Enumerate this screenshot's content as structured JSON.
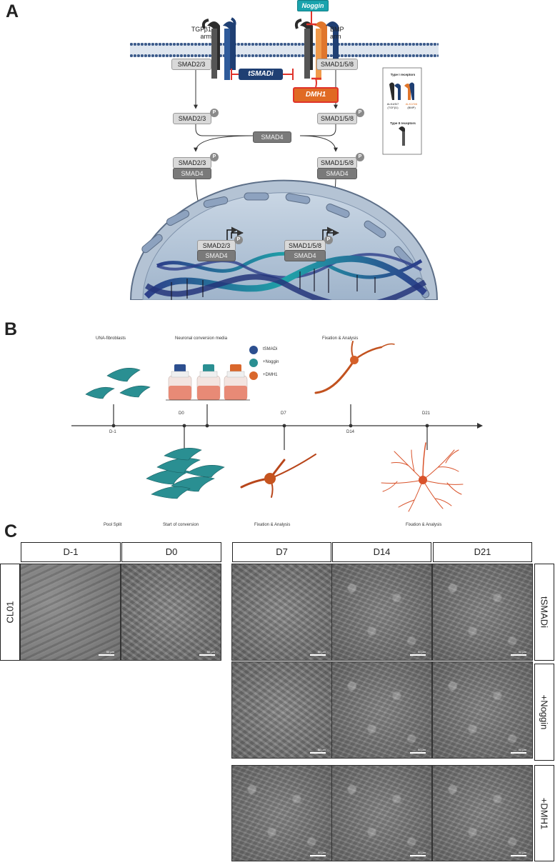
{
  "panels": {
    "a": "A",
    "b": "B",
    "c": "C"
  },
  "panel_a": {
    "noggin": "Noggin",
    "tgfb1_arm": [
      "TGFβ1",
      "arm"
    ],
    "bmp_arm": [
      "BMP",
      "arm"
    ],
    "smad23": "SMAD2/3",
    "smad158": "SMAD1/5/8",
    "smad4": "SMAD4",
    "p": "P",
    "tsmadi": "tSMADi",
    "dmh1": "DMH1",
    "legend": {
      "type1": "Type I receptors",
      "alk_left": [
        "ALK4/5/7",
        "(TGFβ1)"
      ],
      "alk_right": [
        "ALK2/3/6",
        "(BMP)"
      ],
      "type2": "Type II receptors"
    },
    "colors": {
      "noggin": "#1aa3ad",
      "tsmadi": "#1f3f73",
      "dmh1": "#e06a24",
      "inhibit": "#e0332b"
    }
  },
  "panel_b": {
    "top_labels": {
      "una": "UNA-fibroblasts",
      "media": "Neuronal conversion media",
      "fix_top": "Fixation & Analysis"
    },
    "legend": [
      {
        "label": "tSMADi",
        "color": "#2c4f8f"
      },
      {
        "label": "+Noggin",
        "color": "#2a8f92"
      },
      {
        "label": "+DMH1",
        "color": "#d9672c"
      }
    ],
    "ticks": {
      "dm1": "D-1",
      "d0": "D0",
      "d7": "D7",
      "d14": "D14",
      "d21": "D21"
    },
    "bottom_labels": {
      "pool": "Pool Split",
      "start": "Start of conversion",
      "fix1": "Fixation & Analysis",
      "fix2": "Fixation & Analysis"
    }
  },
  "panel_c": {
    "left_headers": [
      "D-1",
      "D0"
    ],
    "right_headers": [
      "D7",
      "D14",
      "D21"
    ],
    "left_row": "CL01",
    "right_rows": [
      "tSMADi",
      "+Noggin",
      "+DMH1"
    ],
    "scale": "50 µm"
  }
}
